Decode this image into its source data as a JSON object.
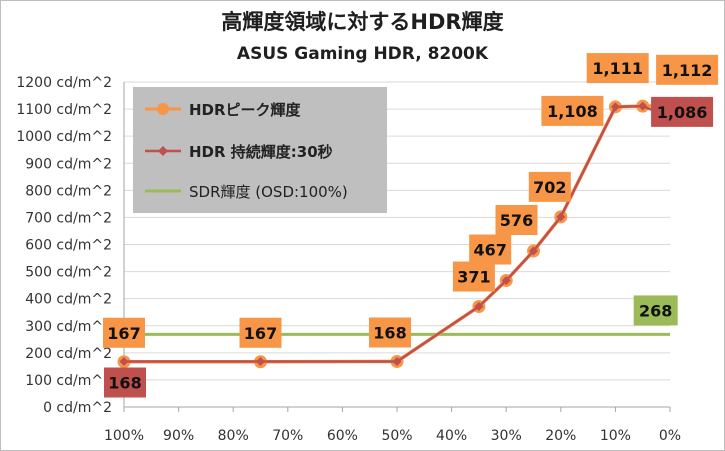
{
  "chart_data": {
    "type": "line",
    "title": "高輝度領域に対するHDR輝度",
    "subtitle": "ASUS Gaming HDR, 8200K",
    "xlabel": "",
    "ylabel": "",
    "ylim": [
      0,
      1200
    ],
    "yticks": [
      "0 cd/m^2",
      "100 cd/m^2",
      "200 cd/m^2",
      "300 cd/m^2",
      "400 cd/m^2",
      "500 cd/m^2",
      "600 cd/m^2",
      "700 cd/m^2",
      "800 cd/m^2",
      "900 cd/m^2",
      "1000 cd/m^2",
      "1100 cd/m^2",
      "1200 cd/m^2"
    ],
    "xticks": [
      "100%",
      "90%",
      "80%",
      "70%",
      "60%",
      "50%",
      "40%",
      "30%",
      "20%",
      "10%",
      "0%"
    ],
    "xlim": [
      100,
      0
    ],
    "series": [
      {
        "name": "HDR 持続輝度:30秒",
        "color": "#c0504d",
        "marker": "diamond",
        "x": [
          100,
          75,
          50,
          35,
          30,
          25,
          20,
          10,
          5,
          2
        ],
        "values": [
          168,
          168,
          168,
          371,
          467,
          576,
          702,
          1108,
          1111,
          1086
        ],
        "labels": [
          {
            "x": 100,
            "text": "168"
          },
          {
            "x": 2,
            "text": "1,086"
          }
        ]
      },
      {
        "name": "HDRピーク輝度",
        "color": "#f79646",
        "marker": "circle",
        "x": [
          100,
          75,
          50,
          35,
          30,
          25,
          20,
          10,
          5,
          2
        ],
        "values": [
          167,
          167,
          168,
          371,
          467,
          576,
          702,
          1108,
          1111,
          1112
        ],
        "labels": [
          {
            "x": 100,
            "text": "167"
          },
          {
            "x": 75,
            "text": "167"
          },
          {
            "x": 50,
            "text": "168"
          },
          {
            "x": 35,
            "text": "371"
          },
          {
            "x": 30,
            "text": "467"
          },
          {
            "x": 25,
            "text": "576"
          },
          {
            "x": 20,
            "text": "702"
          },
          {
            "x": 10,
            "text": "1,108"
          },
          {
            "x": 5,
            "text": "1,111"
          },
          {
            "x": 2,
            "text": "1,112"
          }
        ]
      },
      {
        "name": "SDR輝度 (OSD:100%)",
        "color": "#9bbb59",
        "marker": "none",
        "x": [
          100,
          0
        ],
        "values": [
          268,
          268
        ],
        "labels": [
          {
            "x": 5,
            "text": "268"
          }
        ]
      }
    ],
    "legend_position": "top-left"
  },
  "legend": {
    "peak": "HDRピーク輝度",
    "sustained": "HDR 持続輝度:30秒",
    "sdr": "SDR輝度 (OSD:100%)"
  }
}
